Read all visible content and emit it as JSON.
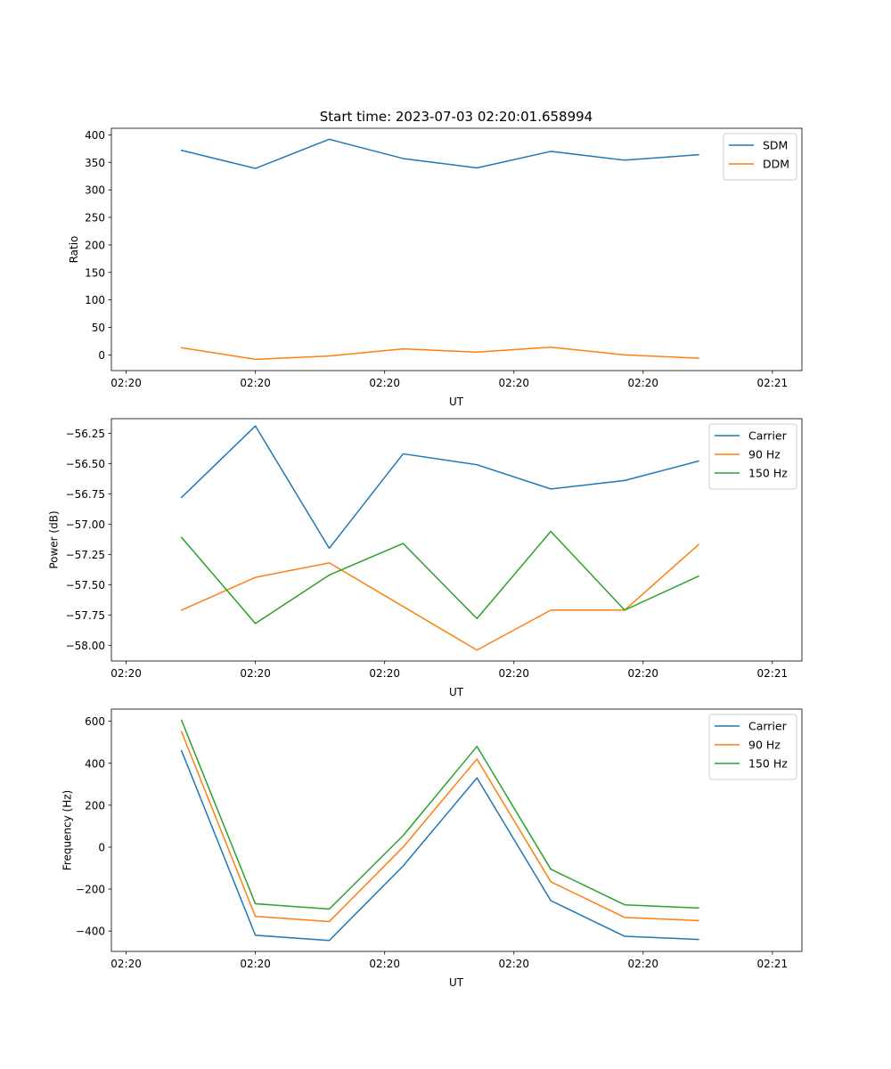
{
  "figure_title": "Start time: 2023-07-03 02:20:01.658994",
  "chart_data": [
    {
      "type": "line",
      "xlabel": "UT",
      "ylabel": "Ratio",
      "x": [
        0,
        1,
        2,
        3,
        4,
        5,
        6,
        7
      ],
      "x_ticks": [
        -0.75,
        1.0,
        2.75,
        4.5,
        6.25,
        8.0
      ],
      "x_tick_labels": [
        "02:20",
        "02:20",
        "02:20",
        "02:20",
        "02:20",
        "02:21"
      ],
      "xlim": [
        -0.95,
        8.4
      ],
      "y_ticks": [
        0,
        50,
        100,
        150,
        200,
        250,
        300,
        350,
        400
      ],
      "y_tick_labels": [
        "0",
        "50",
        "100",
        "150",
        "200",
        "250",
        "300",
        "350",
        "400"
      ],
      "ylim": [
        -28.5,
        412
      ],
      "legend": "top-right",
      "series": [
        {
          "name": "SDM",
          "color": "#1f77b4",
          "values": [
            372,
            339,
            392,
            357,
            340,
            370,
            354,
            364
          ]
        },
        {
          "name": "DDM",
          "color": "#ff7f0e",
          "values": [
            13,
            -8,
            -2,
            11,
            5,
            14,
            0,
            -6
          ]
        }
      ]
    },
    {
      "type": "line",
      "xlabel": "UT",
      "ylabel": "Power (dB)",
      "x": [
        0,
        1,
        2,
        3,
        4,
        5,
        6,
        7
      ],
      "x_ticks": [
        -0.75,
        1.0,
        2.75,
        4.5,
        6.25,
        8.0
      ],
      "x_tick_labels": [
        "02:20",
        "02:20",
        "02:20",
        "02:20",
        "02:20",
        "02:21"
      ],
      "xlim": [
        -0.95,
        8.4
      ],
      "y_ticks": [
        -58.0,
        -57.75,
        -57.5,
        -57.25,
        -57.0,
        -56.75,
        -56.5,
        -56.25
      ],
      "y_tick_labels": [
        "−58.00",
        "−57.75",
        "−57.50",
        "−57.25",
        "−57.00",
        "−56.75",
        "−56.50",
        "−56.25"
      ],
      "ylim": [
        -58.13,
        -56.13
      ],
      "legend": "top-right",
      "series": [
        {
          "name": "Carrier",
          "color": "#1f77b4",
          "values": [
            -56.78,
            -56.19,
            -57.2,
            -56.42,
            -56.51,
            -56.71,
            -56.64,
            -56.48
          ]
        },
        {
          "name": "90 Hz",
          "color": "#ff7f0e",
          "values": [
            -57.71,
            -57.44,
            -57.32,
            -57.68,
            -58.04,
            -57.71,
            -57.71,
            -57.17
          ]
        },
        {
          "name": "150 Hz",
          "color": "#2ca02c",
          "values": [
            -57.11,
            -57.82,
            -57.42,
            -57.16,
            -57.78,
            -57.06,
            -57.71,
            -57.43
          ]
        }
      ]
    },
    {
      "type": "line",
      "xlabel": "UT",
      "ylabel": "Frequency (Hz)",
      "x": [
        0,
        1,
        2,
        3,
        4,
        5,
        6,
        7
      ],
      "x_ticks": [
        -0.75,
        1.0,
        2.75,
        4.5,
        6.25,
        8.0
      ],
      "x_tick_labels": [
        "02:20",
        "02:20",
        "02:20",
        "02:20",
        "02:20",
        "02:21"
      ],
      "xlim": [
        -0.95,
        8.4
      ],
      "y_ticks": [
        -400,
        -200,
        0,
        200,
        400,
        600
      ],
      "y_tick_labels": [
        "−400",
        "−200",
        "0",
        "200",
        "400",
        "600"
      ],
      "ylim": [
        -497,
        658
      ],
      "legend": "top-right",
      "series": [
        {
          "name": "Carrier",
          "color": "#1f77b4",
          "values": [
            460,
            -420,
            -445,
            -90,
            330,
            -255,
            -425,
            -440
          ]
        },
        {
          "name": "90 Hz",
          "color": "#ff7f0e",
          "values": [
            550,
            -330,
            -355,
            0,
            420,
            -165,
            -335,
            -350
          ]
        },
        {
          "name": "150 Hz",
          "color": "#2ca02c",
          "values": [
            605,
            -270,
            -295,
            55,
            480,
            -105,
            -275,
            -290
          ]
        }
      ]
    }
  ]
}
